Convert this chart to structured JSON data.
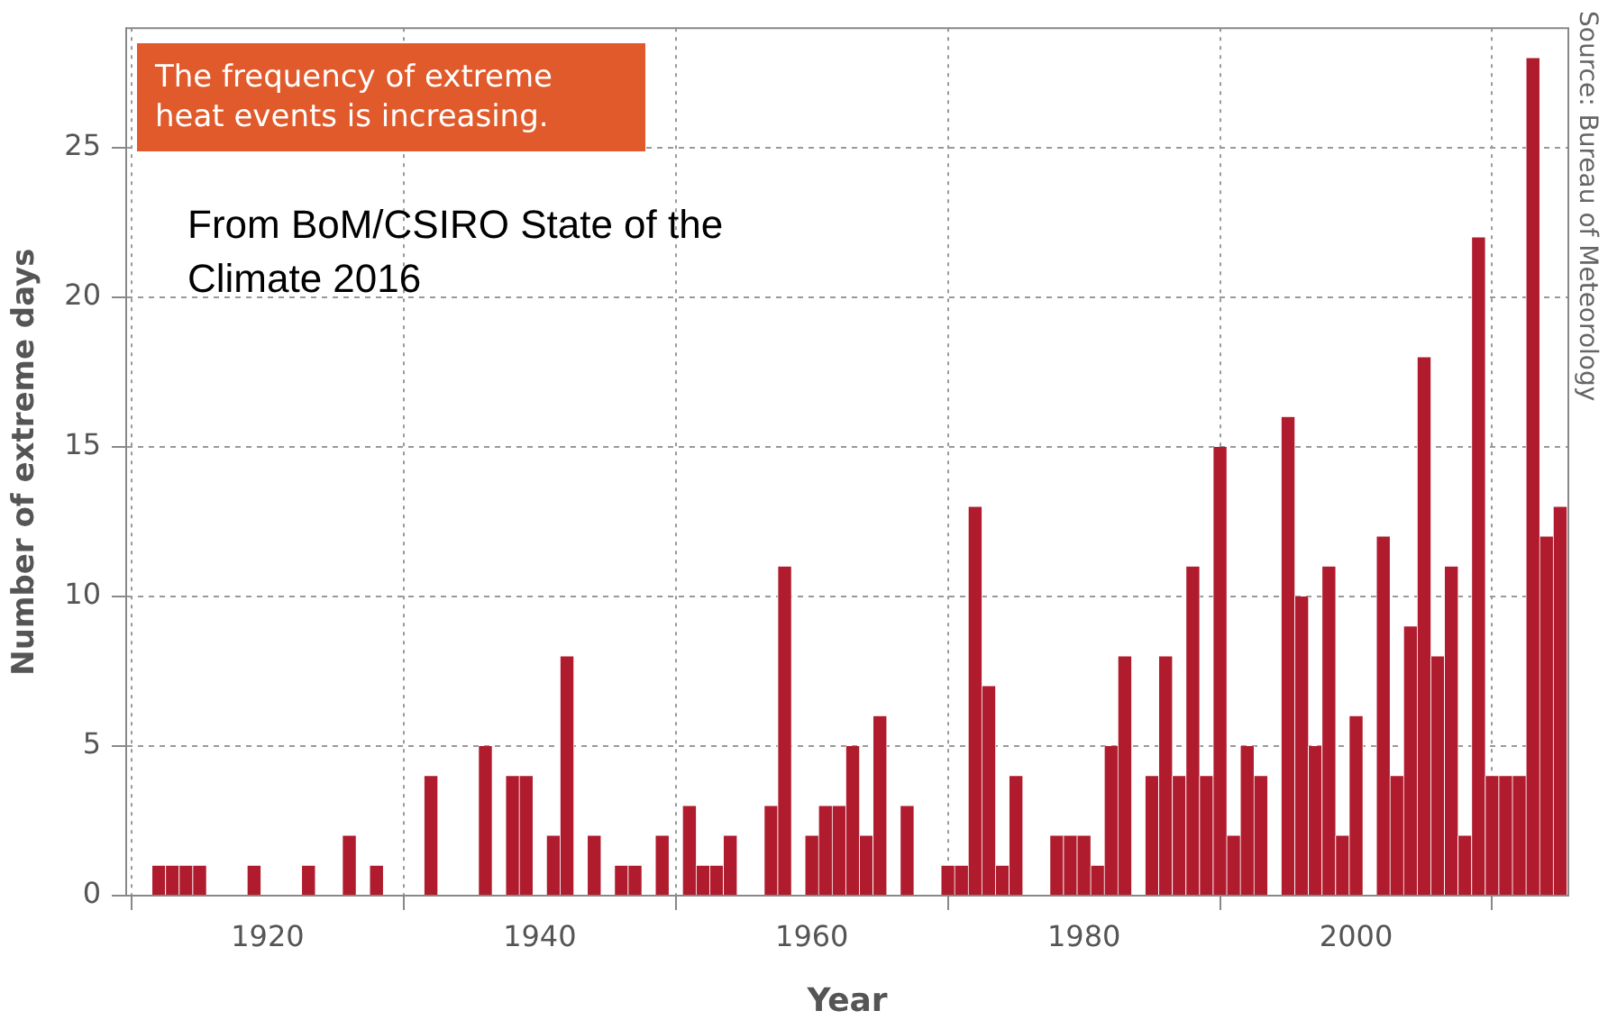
{
  "chart_data": {
    "type": "bar",
    "title": "The frequency of extreme heat events is increasing.",
    "xlabel": "Year",
    "ylabel": "Number of extreme days",
    "annotations": [
      "From BoM/CSIRO State of the Climate 2016",
      "Source: Bureau of Meteorology"
    ],
    "x": [
      1910,
      1911,
      1912,
      1913,
      1914,
      1915,
      1916,
      1917,
      1918,
      1919,
      1920,
      1921,
      1922,
      1923,
      1924,
      1925,
      1926,
      1927,
      1928,
      1929,
      1930,
      1931,
      1932,
      1933,
      1934,
      1935,
      1936,
      1937,
      1938,
      1939,
      1940,
      1941,
      1942,
      1943,
      1944,
      1945,
      1946,
      1947,
      1948,
      1949,
      1950,
      1951,
      1952,
      1953,
      1954,
      1955,
      1956,
      1957,
      1958,
      1959,
      1960,
      1961,
      1962,
      1963,
      1964,
      1965,
      1966,
      1967,
      1968,
      1969,
      1970,
      1971,
      1972,
      1973,
      1974,
      1975,
      1976,
      1977,
      1978,
      1979,
      1980,
      1981,
      1982,
      1983,
      1984,
      1985,
      1986,
      1987,
      1988,
      1989,
      1990,
      1991,
      1992,
      1993,
      1994,
      1995,
      1996,
      1997,
      1998,
      1999,
      2000,
      2001,
      2002,
      2003,
      2004,
      2005,
      2006,
      2007,
      2008,
      2009,
      2010,
      2011,
      2012,
      2013,
      2014,
      2015
    ],
    "values": [
      0,
      0,
      1,
      1,
      1,
      1,
      0,
      0,
      0,
      1,
      0,
      0,
      0,
      1,
      0,
      0,
      2,
      0,
      1,
      0,
      0,
      0,
      4,
      0,
      0,
      0,
      5,
      0,
      4,
      4,
      0,
      2,
      8,
      0,
      2,
      0,
      1,
      1,
      0,
      2,
      0,
      3,
      1,
      1,
      2,
      0,
      0,
      3,
      11,
      0,
      2,
      3,
      3,
      5,
      2,
      6,
      0,
      3,
      0,
      0,
      1,
      1,
      13,
      7,
      1,
      4,
      0,
      0,
      2,
      2,
      2,
      1,
      5,
      8,
      0,
      4,
      8,
      4,
      11,
      4,
      15,
      2,
      5,
      4,
      0,
      16,
      10,
      5,
      11,
      2,
      6,
      0,
      12,
      4,
      9,
      18,
      8,
      11,
      2,
      22,
      4,
      4,
      4,
      28,
      12,
      13
    ],
    "color": "#b01c2e",
    "xlim": [
      1909.6,
      2015.6
    ],
    "xticks": [
      1920,
      1940,
      1960,
      1980,
      2000
    ],
    "ylim": [
      0,
      29
    ],
    "yticks": [
      0,
      5,
      10,
      15,
      20,
      25
    ],
    "grid": true
  }
}
